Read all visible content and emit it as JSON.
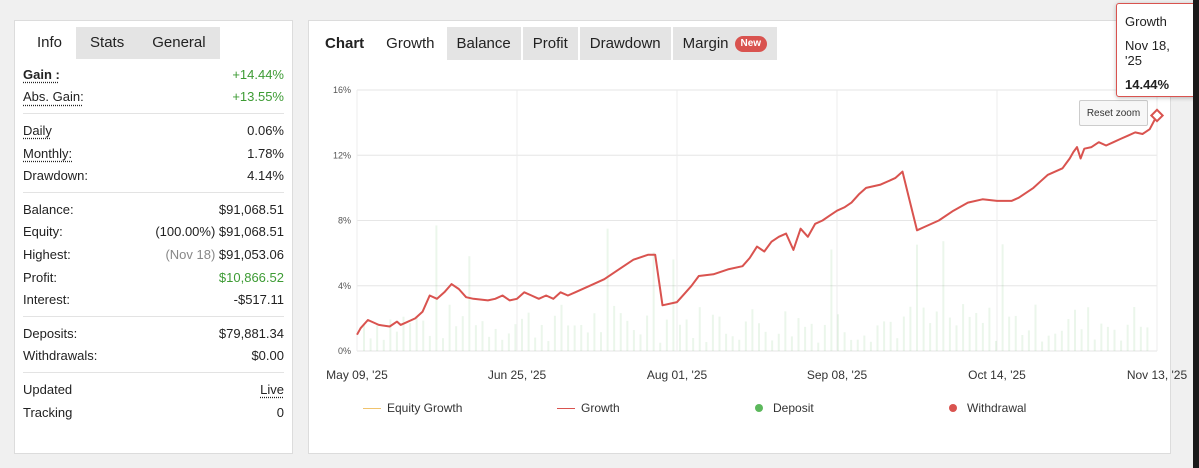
{
  "left_tabs": [
    "Info",
    "Stats",
    "General"
  ],
  "stats": {
    "gain": {
      "label": "Gain :",
      "value": "+14.44%"
    },
    "abs_gain": {
      "label": "Abs. Gain:",
      "value": "+13.55%"
    },
    "daily": {
      "label": "Daily",
      "value": "0.06%"
    },
    "monthly": {
      "label": "Monthly:",
      "value": "1.78%"
    },
    "drawdown": {
      "label": "Drawdown:",
      "value": "4.14%"
    },
    "balance": {
      "label": "Balance:",
      "value": "$91,068.51"
    },
    "equity": {
      "label": "Equity:",
      "pct": "(100.00%)",
      "value": "$91,068.51"
    },
    "highest": {
      "label": "Highest:",
      "date": "(Nov 18)",
      "value": "$91,053.06"
    },
    "profit": {
      "label": "Profit:",
      "value": "$10,866.52"
    },
    "interest": {
      "label": "Interest:",
      "value": "-$517.11"
    },
    "deposits": {
      "label": "Deposits:",
      "value": "$79,881.34"
    },
    "withdrawals": {
      "label": "Withdrawals:",
      "value": "$0.00"
    },
    "updated": {
      "label": "Updated",
      "value": "Live"
    },
    "tracking": {
      "label": "Tracking",
      "value": "0"
    }
  },
  "chart_tabs": {
    "chart": "Chart",
    "growth": "Growth",
    "balance": "Balance",
    "profit": "Profit",
    "drawdown": "Drawdown",
    "margin": "Margin",
    "new_badge": "New"
  },
  "tooltip": {
    "series": "Growth",
    "date": "Nov 18, '25",
    "value": "14.44%"
  },
  "reset_zoom": "Reset zoom",
  "colors": {
    "growth": "#d9534f",
    "equity": "#f0c36d",
    "deposit": "#5cb85c",
    "withdrawal": "#d9534f"
  },
  "chart_data": {
    "type": "line",
    "y_ticks": [
      "0%",
      "4%",
      "8%",
      "12%",
      "16%"
    ],
    "ylim": [
      0,
      16
    ],
    "x_ticks": [
      "May 09, '25",
      "Jun 25, '25",
      "Aug 01, '25",
      "Sep 08, '25",
      "Oct 14, '25",
      "Nov 13, '25"
    ],
    "series": [
      {
        "name": "Growth",
        "values": [
          [
            0,
            1.0
          ],
          [
            0.005,
            1.4
          ],
          [
            0.015,
            1.9
          ],
          [
            0.03,
            1.6
          ],
          [
            0.045,
            1.5
          ],
          [
            0.055,
            1.8
          ],
          [
            0.06,
            1.6
          ],
          [
            0.065,
            1.7
          ],
          [
            0.08,
            2.0
          ],
          [
            0.09,
            2.4
          ],
          [
            0.1,
            3.4
          ],
          [
            0.11,
            3.2
          ],
          [
            0.12,
            3.6
          ],
          [
            0.13,
            4.1
          ],
          [
            0.14,
            3.8
          ],
          [
            0.15,
            3.3
          ],
          [
            0.16,
            3.2
          ],
          [
            0.18,
            3.1
          ],
          [
            0.19,
            3.2
          ],
          [
            0.2,
            3.4
          ],
          [
            0.21,
            3.1
          ],
          [
            0.22,
            3.2
          ],
          [
            0.23,
            3.6
          ],
          [
            0.24,
            3.4
          ],
          [
            0.25,
            3.2
          ],
          [
            0.26,
            3.4
          ],
          [
            0.27,
            3.2
          ],
          [
            0.28,
            3.6
          ],
          [
            0.29,
            3.4
          ],
          [
            0.3,
            3.6
          ],
          [
            0.32,
            4.0
          ],
          [
            0.34,
            4.4
          ],
          [
            0.36,
            5.0
          ],
          [
            0.38,
            5.6
          ],
          [
            0.4,
            5.9
          ],
          [
            0.41,
            5.9
          ],
          [
            0.42,
            2.8
          ],
          [
            0.44,
            3.0
          ],
          [
            0.45,
            3.5
          ],
          [
            0.46,
            4.0
          ],
          [
            0.47,
            4.6
          ],
          [
            0.49,
            4.7
          ],
          [
            0.51,
            5.0
          ],
          [
            0.53,
            5.2
          ],
          [
            0.54,
            5.7
          ],
          [
            0.55,
            6.4
          ],
          [
            0.56,
            6.1
          ],
          [
            0.57,
            6.7
          ],
          [
            0.58,
            7.0
          ],
          [
            0.59,
            7.2
          ],
          [
            0.6,
            6.2
          ],
          [
            0.61,
            7.5
          ],
          [
            0.62,
            7.0
          ],
          [
            0.63,
            7.8
          ],
          [
            0.64,
            8.0
          ],
          [
            0.65,
            8.3
          ],
          [
            0.66,
            8.6
          ],
          [
            0.67,
            8.8
          ],
          [
            0.68,
            9.1
          ],
          [
            0.69,
            9.6
          ],
          [
            0.7,
            10.0
          ],
          [
            0.72,
            10.2
          ],
          [
            0.74,
            10.6
          ],
          [
            0.75,
            11.0
          ],
          [
            0.76,
            9.2
          ],
          [
            0.77,
            7.4
          ],
          [
            0.78,
            7.6
          ],
          [
            0.8,
            8.0
          ],
          [
            0.82,
            8.6
          ],
          [
            0.84,
            9.1
          ],
          [
            0.86,
            9.3
          ],
          [
            0.88,
            9.2
          ],
          [
            0.9,
            9.2
          ],
          [
            0.91,
            9.4
          ],
          [
            0.92,
            9.7
          ],
          [
            0.93,
            10.0
          ],
          [
            0.94,
            10.4
          ],
          [
            0.95,
            10.8
          ],
          [
            0.96,
            11.0
          ],
          [
            0.97,
            11.2
          ],
          [
            0.975,
            11.5
          ],
          [
            0.98,
            11.8
          ],
          [
            0.985,
            12.2
          ],
          [
            0.99,
            12.5
          ],
          [
            0.995,
            11.8
          ],
          [
            1.0,
            12.4
          ],
          [
            1.01,
            12.5
          ],
          [
            1.02,
            12.8
          ],
          [
            1.03,
            12.6
          ],
          [
            1.04,
            12.8
          ],
          [
            1.05,
            13.0
          ],
          [
            1.06,
            13.2
          ],
          [
            1.07,
            13.4
          ],
          [
            1.08,
            13.3
          ],
          [
            1.09,
            13.6
          ],
          [
            1.1,
            14.44
          ]
        ]
      }
    ],
    "legend": [
      "Equity Growth",
      "Growth",
      "Deposit",
      "Withdrawal"
    ]
  }
}
